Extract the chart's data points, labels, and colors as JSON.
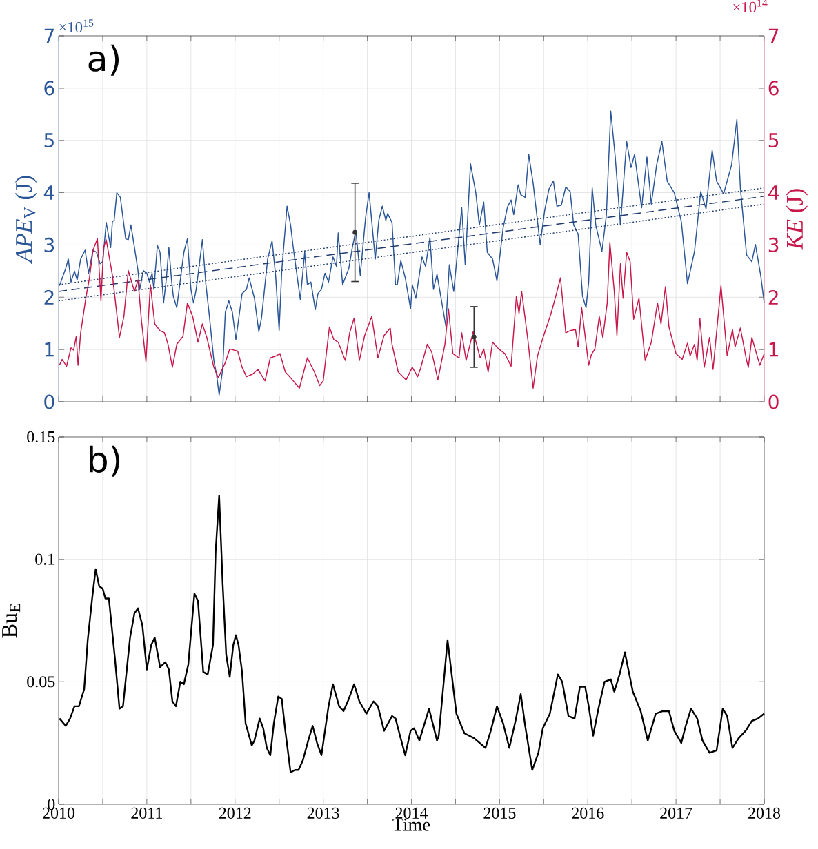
{
  "chart_data": [
    {
      "type": "line",
      "ylabel": "*APE*$_{V}$ (J)",
      "y2label": "*KE* (J)",
      "annotations": [
        "a)",
        "×10$^{15}$",
        "×10$^{14}$"
      ],
      "xlim": [
        2010,
        2018
      ],
      "xticks": [
        2010,
        {
          "value": 2010.5,
          "label": null
        },
        2011,
        {
          "value": 2011.5,
          "label": null
        },
        2012,
        {
          "value": 2012.5,
          "label": null
        },
        2013,
        {
          "value": 2013.5,
          "label": null
        },
        2014,
        {
          "value": 2014.5,
          "label": null
        },
        2015,
        {
          "value": 2015.5,
          "label": null
        },
        2016,
        {
          "value": 2016.5,
          "label": null
        },
        2017,
        {
          "value": 2017.5,
          "label": null
        },
        2018
      ],
      "ylim": [
        0,
        7
      ],
      "yticks": [
        0,
        1,
        2,
        3,
        4,
        5,
        6,
        7
      ],
      "y2lim": [
        0,
        7
      ],
      "y2ticks": [
        0,
        1,
        2,
        3,
        4,
        5,
        6,
        7
      ],
      "tick_labels": "y",
      "grid": true,
      "marker": "none",
      "series": [
        {
          "color": "#2a5597",
          "x": [
            2010.01,
            2010.08,
            2010.11,
            2010.14,
            2010.18,
            2010.21,
            2010.25,
            2010.3,
            2010.34,
            2010.39,
            2010.43,
            2010.47,
            2010.5,
            2010.54,
            2010.59,
            2010.61,
            2010.63,
            2010.66,
            2010.7,
            2010.76,
            2010.79,
            2010.82,
            2010.86,
            2010.9,
            2010.92,
            2010.96,
            2011.0,
            2011.03,
            2011.06,
            2011.08,
            2011.12,
            2011.15,
            2011.19,
            2011.22,
            2011.25,
            2011.28,
            2011.3,
            2011.34,
            2011.38,
            2011.42,
            2011.46,
            2011.5,
            2011.53,
            2011.56,
            2011.63,
            2011.67,
            2011.71,
            2011.76,
            2011.79,
            2011.82,
            2011.86,
            2011.89,
            2011.93,
            2011.97,
            2012.01,
            2012.08,
            2012.13,
            2012.16,
            2012.22,
            2012.27,
            2012.3,
            2012.37,
            2012.42,
            2012.46,
            2012.5,
            2012.53,
            2012.59,
            2012.63,
            2012.66,
            2012.74,
            2012.79,
            2012.82,
            2012.86,
            2012.91,
            2012.94,
            2012.98,
            2013.02,
            2013.06,
            2013.11,
            2013.15,
            2013.17,
            2013.22,
            2013.29,
            2013.33,
            2013.37,
            2013.42,
            2013.48,
            2013.52,
            2013.59,
            2013.63,
            2013.67,
            2013.71,
            2013.73,
            2013.78,
            2013.82,
            2013.84,
            2013.88,
            2013.93,
            2013.99,
            2014.01,
            2014.05,
            2014.12,
            2014.16,
            2014.21,
            2014.25,
            2014.29,
            2014.39,
            2014.43,
            2014.48,
            2014.57,
            2014.61,
            2014.67,
            2014.73,
            2014.77,
            2014.82,
            2014.86,
            2014.92,
            2014.97,
            2015.04,
            2015.09,
            2015.13,
            2015.16,
            2015.21,
            2015.24,
            2015.29,
            2015.33,
            2015.38,
            2015.46,
            2015.51,
            2015.56,
            2015.61,
            2015.65,
            2015.7,
            2015.75,
            2015.8,
            2015.84,
            2015.89,
            2015.94,
            2015.98,
            2016.01,
            2016.05,
            2016.09,
            2016.16,
            2016.21,
            2016.26,
            2016.31,
            2016.37,
            2016.44,
            2016.49,
            2016.53,
            2016.61,
            2016.67,
            2016.72,
            2016.78,
            2016.84,
            2016.9,
            2016.98,
            2017.06,
            2017.13,
            2017.21,
            2017.28,
            2017.34,
            2017.41,
            2017.46,
            2017.54,
            2017.63,
            2017.69,
            2017.73,
            2017.8,
            2017.86,
            2017.9,
            2017.96,
            2018.0
          ],
          "values": [
            2.22,
            2.55,
            2.73,
            2.29,
            2.5,
            2.33,
            2.73,
            2.9,
            2.46,
            2.9,
            2.86,
            2.64,
            2.68,
            3.43,
            2.95,
            3.45,
            3.47,
            4.0,
            3.91,
            3.12,
            3.1,
            3.38,
            2.95,
            2.51,
            2.15,
            2.51,
            2.46,
            2.29,
            2.46,
            2.15,
            2.99,
            2.86,
            1.89,
            2.33,
            2.95,
            2.33,
            2.02,
            1.8,
            2.33,
            2.86,
            3.12,
            2.15,
            1.89,
            2.15,
            3.1,
            2.24,
            1.63,
            0.79,
            0.53,
            0.13,
            0.62,
            1.71,
            1.93,
            1.71,
            1.19,
            2.07,
            2.15,
            2.37,
            1.98,
            1.34,
            1.6,
            2.73,
            3.08,
            2.42,
            1.36,
            2.51,
            3.74,
            3.38,
            2.95,
            1.96,
            2.86,
            2.24,
            2.29,
            1.76,
            2.07,
            2.15,
            2.46,
            2.29,
            2.77,
            2.59,
            3.23,
            2.24,
            2.55,
            2.95,
            3.27,
            2.42,
            3.52,
            4.0,
            2.73,
            3.47,
            3.74,
            3.47,
            3.6,
            3.43,
            2.24,
            2.24,
            2.7,
            2.37,
            1.78,
            2.24,
            1.98,
            2.77,
            2.59,
            3.14,
            2.15,
            2.44,
            1.45,
            2.62,
            2.11,
            3.71,
            2.62,
            4.55,
            4.0,
            3.38,
            3.82,
            2.86,
            2.73,
            2.31,
            3.33,
            3.73,
            3.86,
            3.58,
            4.15,
            3.96,
            3.91,
            4.73,
            4.18,
            3.01,
            3.65,
            4.07,
            4.22,
            3.74,
            3.76,
            4.11,
            4.02,
            3.38,
            3.21,
            2.02,
            1.8,
            2.29,
            4.09,
            3.38,
            2.88,
            3.56,
            5.56,
            4.7,
            3.38,
            4.98,
            4.48,
            4.73,
            3.71,
            4.68,
            3.78,
            4.53,
            4.98,
            4.22,
            4.0,
            3.45,
            2.26,
            2.88,
            4.02,
            3.69,
            4.81,
            4.22,
            3.98,
            4.53,
            5.4,
            4.09,
            2.81,
            2.68,
            3.01,
            2.42,
            1.89
          ]
        },
        {
          "color": "#c8174a",
          "axis": "y2",
          "x": [
            2010.01,
            2010.04,
            2010.09,
            2010.14,
            2010.17,
            2010.2,
            2010.22,
            2010.25,
            2010.31,
            2010.35,
            2010.39,
            2010.44,
            2010.48,
            2010.51,
            2010.54,
            2010.61,
            2010.69,
            2010.74,
            2010.79,
            2010.86,
            2010.9,
            2010.94,
            2010.99,
            2011.04,
            2011.09,
            2011.15,
            2011.2,
            2011.24,
            2011.29,
            2011.34,
            2011.41,
            2011.46,
            2011.52,
            2011.58,
            2011.63,
            2011.68,
            2011.76,
            2011.81,
            2011.89,
            2011.94,
            2012.03,
            2012.08,
            2012.13,
            2012.2,
            2012.26,
            2012.34,
            2012.4,
            2012.47,
            2012.51,
            2012.57,
            2012.64,
            2012.73,
            2012.82,
            2012.9,
            2012.96,
            2013.0,
            2013.07,
            2013.12,
            2013.17,
            2013.25,
            2013.3,
            2013.35,
            2013.41,
            2013.47,
            2013.55,
            2013.62,
            2013.69,
            2013.76,
            2013.78,
            2013.85,
            2013.94,
            2014.01,
            2014.07,
            2014.1,
            2014.18,
            2014.23,
            2014.3,
            2014.38,
            2014.42,
            2014.47,
            2014.54,
            2014.57,
            2014.62,
            2014.7,
            2014.78,
            2014.82,
            2014.87,
            2014.92,
            2014.99,
            2015.06,
            2015.13,
            2015.19,
            2015.22,
            2015.25,
            2015.32,
            2015.38,
            2015.43,
            2015.5,
            2015.58,
            2015.64,
            2015.69,
            2015.75,
            2015.8,
            2015.86,
            2015.89,
            2015.93,
            2016.01,
            2016.04,
            2016.08,
            2016.13,
            2016.17,
            2016.22,
            2016.25,
            2016.3,
            2016.33,
            2016.37,
            2016.4,
            2016.44,
            2016.48,
            2016.52,
            2016.58,
            2016.65,
            2016.72,
            2016.79,
            2016.83,
            2016.88,
            2016.92,
            2017.0,
            2017.07,
            2017.13,
            2017.16,
            2017.21,
            2017.24,
            2017.27,
            2017.32,
            2017.38,
            2017.42,
            2017.51,
            2017.58,
            2017.64,
            2017.67,
            2017.73,
            2017.8,
            2017.82,
            2017.86,
            2017.95,
            2018.0
          ],
          "values": [
            0.7,
            0.81,
            0.68,
            1.03,
            0.99,
            1.25,
            0.7,
            1.32,
            2.0,
            2.37,
            2.9,
            3.12,
            1.93,
            2.95,
            3.1,
            2.42,
            1.23,
            1.63,
            2.51,
            2.11,
            2.33,
            1.54,
            0.77,
            2.24,
            1.49,
            1.36,
            1.32,
            1.1,
            0.66,
            1.1,
            1.25,
            1.89,
            1.63,
            1.14,
            1.49,
            1.23,
            0.66,
            0.46,
            0.75,
            1.01,
            0.97,
            0.66,
            0.48,
            0.53,
            0.62,
            0.4,
            0.84,
            0.88,
            0.92,
            0.57,
            0.44,
            0.26,
            0.84,
            0.57,
            0.31,
            0.4,
            1.43,
            1.19,
            1.14,
            0.79,
            1.32,
            1.6,
            0.79,
            1.27,
            1.63,
            0.84,
            1.27,
            1.41,
            1.1,
            0.57,
            0.42,
            0.66,
            0.48,
            0.62,
            1.1,
            0.95,
            0.42,
            1.1,
            1.78,
            0.92,
            0.84,
            1.32,
            0.79,
            1.34,
            0.84,
            1.01,
            0.57,
            1.14,
            1.01,
            0.92,
            0.68,
            2.02,
            1.69,
            2.11,
            1.19,
            0.26,
            0.88,
            1.27,
            1.67,
            2.04,
            2.37,
            1.32,
            1.36,
            1.38,
            1.05,
            1.8,
            0.7,
            0.9,
            1.01,
            1.63,
            1.23,
            1.89,
            3.05,
            2.11,
            1.27,
            2.64,
            1.98,
            2.86,
            2.68,
            1.58,
            1.98,
            0.79,
            1.14,
            1.89,
            1.49,
            2.2,
            1.43,
            0.92,
            0.81,
            1.12,
            0.88,
            1.1,
            0.79,
            1.6,
            0.66,
            1.23,
            0.62,
            2.22,
            0.88,
            1.38,
            1.05,
            1.41,
            0.79,
            0.66,
            1.23,
            0.7,
            0.92
          ]
        },
        {
          "color": "#1f3a6e",
          "line_style": "dashed",
          "x": [
            2010,
            2018
          ],
          "values": [
            2.11,
            3.93
          ]
        },
        {
          "color": "#1f3a6e",
          "line_style": "dotted",
          "x": [
            2010,
            2018
          ],
          "values": [
            2.24,
            4.09
          ]
        },
        {
          "color": "#1f3a6e",
          "line_style": "dotted",
          "x": [
            2010,
            2018
          ],
          "values": [
            1.93,
            3.78
          ]
        },
        {
          "type": "scatter",
          "color": "#333333",
          "x": [
            2013.36
          ],
          "values": [
            3.24
          ],
          "errors": [
            0.94
          ]
        },
        {
          "type": "scatter",
          "color": "#333333",
          "axis": "y2",
          "x": [
            2014.71
          ],
          "values": [
            1.24
          ],
          "errors": [
            0.58
          ]
        }
      ]
    },
    {
      "type": "line",
      "xlabel": "Time",
      "ylabel": "Bu$_{E}$",
      "annotations": [
        "b)"
      ],
      "xlim": [
        2010,
        2018
      ],
      "xticks": [
        2010,
        {
          "value": 2010.5,
          "label": null
        },
        2011,
        {
          "value": 2011.5,
          "label": null
        },
        2012,
        {
          "value": 2012.5,
          "label": null
        },
        2013,
        {
          "value": 2013.5,
          "label": null
        },
        2014,
        {
          "value": 2014.5,
          "label": null
        },
        2015,
        {
          "value": 2015.5,
          "label": null
        },
        2016,
        {
          "value": 2016.5,
          "label": null
        },
        2017,
        {
          "value": 2017.5,
          "label": null
        },
        2018
      ],
      "ylim": [
        0,
        0.15
      ],
      "yticks": [
        0,
        0.05,
        0.1,
        0.15
      ],
      "grid": true,
      "marker": "none",
      "series": [
        {
          "color": "#000000",
          "x": [
            2010.01,
            2010.08,
            2010.13,
            2010.18,
            2010.23,
            2010.29,
            2010.33,
            2010.38,
            2010.42,
            2010.46,
            2010.5,
            2010.53,
            2010.57,
            2010.64,
            2010.69,
            2010.73,
            2010.81,
            2010.86,
            2010.9,
            2010.95,
            2011.0,
            2011.05,
            2011.09,
            2011.15,
            2011.21,
            2011.25,
            2011.29,
            2011.33,
            2011.38,
            2011.42,
            2011.47,
            2011.54,
            2011.58,
            2011.64,
            2011.69,
            2011.75,
            2011.78,
            2011.82,
            2011.86,
            2011.9,
            2011.94,
            2011.98,
            2012.01,
            2012.04,
            2012.08,
            2012.12,
            2012.19,
            2012.22,
            2012.28,
            2012.32,
            2012.36,
            2012.4,
            2012.44,
            2012.49,
            2012.53,
            2012.57,
            2012.63,
            2012.68,
            2012.72,
            2012.77,
            2012.83,
            2012.88,
            2012.93,
            2012.98,
            2013.06,
            2013.11,
            2013.18,
            2013.23,
            2013.29,
            2013.35,
            2013.41,
            2013.49,
            2013.57,
            2013.62,
            2013.69,
            2013.78,
            2013.82,
            2013.87,
            2013.93,
            2013.99,
            2014.03,
            2014.09,
            2014.2,
            2014.29,
            2014.31,
            2014.41,
            2014.51,
            2014.6,
            2014.71,
            2014.84,
            2014.9,
            2014.97,
            2015.04,
            2015.11,
            2015.18,
            2015.24,
            2015.29,
            2015.37,
            2015.44,
            2015.49,
            2015.57,
            2015.66,
            2015.71,
            2015.78,
            2015.85,
            2015.91,
            2015.97,
            2016.01,
            2016.06,
            2016.12,
            2016.19,
            2016.26,
            2016.3,
            2016.36,
            2016.42,
            2016.51,
            2016.6,
            2016.68,
            2016.77,
            2016.85,
            2016.92,
            2016.98,
            2017.06,
            2017.11,
            2017.17,
            2017.24,
            2017.3,
            2017.38,
            2017.46,
            2017.53,
            2017.58,
            2017.64,
            2017.71,
            2017.79,
            2017.86,
            2017.93,
            2018.0
          ],
          "values": [
            0.035,
            0.032,
            0.035,
            0.04,
            0.04,
            0.047,
            0.067,
            0.084,
            0.096,
            0.089,
            0.088,
            0.084,
            0.084,
            0.059,
            0.039,
            0.04,
            0.068,
            0.078,
            0.08,
            0.073,
            0.055,
            0.065,
            0.068,
            0.056,
            0.058,
            0.055,
            0.042,
            0.04,
            0.05,
            0.049,
            0.057,
            0.086,
            0.083,
            0.054,
            0.053,
            0.065,
            0.103,
            0.126,
            0.09,
            0.061,
            0.052,
            0.065,
            0.069,
            0.065,
            0.054,
            0.033,
            0.024,
            0.026,
            0.035,
            0.031,
            0.023,
            0.02,
            0.033,
            0.044,
            0.043,
            0.03,
            0.013,
            0.014,
            0.014,
            0.018,
            0.026,
            0.032,
            0.025,
            0.02,
            0.04,
            0.049,
            0.04,
            0.038,
            0.043,
            0.049,
            0.042,
            0.037,
            0.042,
            0.04,
            0.03,
            0.036,
            0.035,
            0.028,
            0.02,
            0.03,
            0.031,
            0.026,
            0.039,
            0.026,
            0.028,
            0.067,
            0.037,
            0.029,
            0.027,
            0.023,
            0.03,
            0.04,
            0.033,
            0.023,
            0.034,
            0.045,
            0.032,
            0.014,
            0.021,
            0.031,
            0.037,
            0.053,
            0.05,
            0.036,
            0.035,
            0.048,
            0.048,
            0.04,
            0.028,
            0.039,
            0.05,
            0.051,
            0.046,
            0.053,
            0.062,
            0.046,
            0.038,
            0.026,
            0.037,
            0.038,
            0.038,
            0.03,
            0.025,
            0.032,
            0.039,
            0.035,
            0.026,
            0.021,
            0.022,
            0.039,
            0.036,
            0.023,
            0.027,
            0.03,
            0.034,
            0.035,
            0.037
          ]
        }
      ]
    }
  ]
}
